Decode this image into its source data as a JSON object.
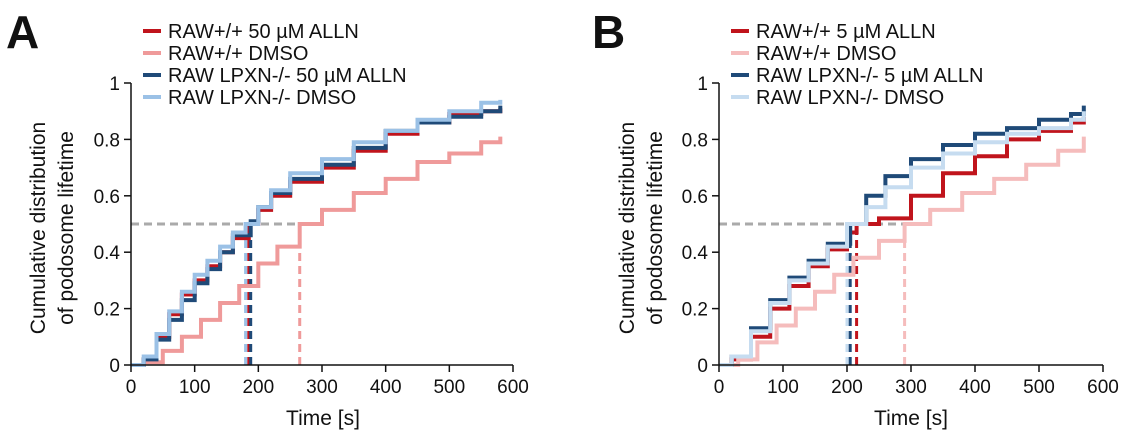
{
  "chart_data": [
    {
      "panel": "A",
      "type": "line",
      "title": "",
      "xlabel": "Time [s]",
      "ylabel": "Cumulative distribution of podosome lifetime",
      "ylabel_lines": [
        "Cumulative distribution",
        "of podosome lifetime"
      ],
      "xlim": [
        0,
        600
      ],
      "ylim": [
        0,
        1
      ],
      "xticks": [
        0,
        100,
        200,
        300,
        400,
        500,
        600
      ],
      "yticks": [
        0,
        0.2,
        0.4,
        0.6,
        0.8,
        1
      ],
      "ytick_labels": [
        "0",
        "0.2",
        "0.4",
        "0.6",
        "0.8",
        "1"
      ],
      "grid": false,
      "legend": "top-left",
      "threshold": {
        "y": 0.5,
        "color": "#aaaaaa"
      },
      "series": [
        {
          "name": "RAW+/+ 50 µM ALLN",
          "color": "#c0141c",
          "median": 185,
          "x": [
            0,
            20,
            40,
            60,
            80,
            100,
            120,
            140,
            160,
            185,
            200,
            220,
            250,
            300,
            350,
            400,
            450,
            500,
            550,
            580
          ],
          "y": [
            0,
            0.02,
            0.1,
            0.18,
            0.25,
            0.3,
            0.35,
            0.4,
            0.45,
            0.5,
            0.55,
            0.6,
            0.65,
            0.7,
            0.76,
            0.82,
            0.86,
            0.89,
            0.9,
            0.91
          ]
        },
        {
          "name": "RAW+/+ DMSO",
          "color": "#ef9a9a",
          "median": 265,
          "x": [
            0,
            20,
            50,
            80,
            110,
            140,
            170,
            200,
            230,
            265,
            300,
            350,
            400,
            450,
            500,
            550,
            580
          ],
          "y": [
            0,
            0.01,
            0.05,
            0.1,
            0.16,
            0.22,
            0.28,
            0.36,
            0.42,
            0.5,
            0.55,
            0.61,
            0.66,
            0.72,
            0.75,
            0.79,
            0.81
          ]
        },
        {
          "name": "RAW LPXN-/- 50 µM ALLN",
          "color": "#1f4a78",
          "median": 188,
          "x": [
            0,
            20,
            40,
            60,
            80,
            100,
            120,
            140,
            160,
            188,
            200,
            220,
            250,
            300,
            350,
            400,
            450,
            500,
            550,
            580
          ],
          "y": [
            0,
            0.02,
            0.09,
            0.16,
            0.23,
            0.29,
            0.34,
            0.4,
            0.46,
            0.51,
            0.56,
            0.61,
            0.66,
            0.71,
            0.77,
            0.83,
            0.86,
            0.88,
            0.9,
            0.92
          ]
        },
        {
          "name": "RAW LPXN-/- DMSO",
          "color": "#9bc1e6",
          "median": 180,
          "x": [
            0,
            20,
            40,
            60,
            80,
            100,
            120,
            140,
            160,
            180,
            200,
            220,
            250,
            300,
            350,
            400,
            450,
            500,
            550,
            580
          ],
          "y": [
            0,
            0.03,
            0.11,
            0.19,
            0.26,
            0.32,
            0.37,
            0.42,
            0.47,
            0.5,
            0.56,
            0.62,
            0.68,
            0.73,
            0.79,
            0.83,
            0.87,
            0.9,
            0.93,
            0.94
          ]
        }
      ]
    },
    {
      "panel": "B",
      "type": "line",
      "title": "",
      "xlabel": "Time [s]",
      "ylabel": "Cumulative distribution of podosome lifetime",
      "ylabel_lines": [
        "Cumulative distribution",
        "of podosome lifetime"
      ],
      "xlim": [
        0,
        600
      ],
      "ylim": [
        0,
        1
      ],
      "xticks": [
        0,
        100,
        200,
        300,
        400,
        500,
        600
      ],
      "yticks": [
        0,
        0.2,
        0.4,
        0.6,
        0.8,
        1
      ],
      "ytick_labels": [
        "0",
        "0.2",
        "0.4",
        "0.6",
        "0.8",
        "1"
      ],
      "grid": false,
      "legend": "top-left",
      "threshold": {
        "y": 0.5,
        "color": "#aaaaaa"
      },
      "series": [
        {
          "name": "RAW+/+ 5 µM ALLN",
          "color": "#c0141c",
          "median": 215,
          "x": [
            0,
            20,
            50,
            80,
            110,
            140,
            170,
            200,
            215,
            250,
            300,
            350,
            400,
            450,
            500,
            550,
            570
          ],
          "y": [
            0,
            0.02,
            0.1,
            0.2,
            0.28,
            0.35,
            0.41,
            0.47,
            0.5,
            0.52,
            0.6,
            0.68,
            0.74,
            0.8,
            0.83,
            0.86,
            0.88
          ]
        },
        {
          "name": "RAW+/+ DMSO",
          "color": "#f5bcbc",
          "median": 290,
          "x": [
            0,
            30,
            60,
            90,
            120,
            150,
            180,
            210,
            250,
            290,
            330,
            380,
            430,
            480,
            530,
            570
          ],
          "y": [
            0,
            0.02,
            0.08,
            0.14,
            0.2,
            0.26,
            0.32,
            0.38,
            0.44,
            0.5,
            0.55,
            0.61,
            0.66,
            0.71,
            0.76,
            0.81
          ]
        },
        {
          "name": "RAW LPXN-/- 5 µM ALLN",
          "color": "#1f4a78",
          "median": 205,
          "x": [
            0,
            20,
            50,
            80,
            110,
            140,
            170,
            205,
            230,
            260,
            300,
            350,
            400,
            450,
            500,
            550,
            570
          ],
          "y": [
            0,
            0.03,
            0.13,
            0.23,
            0.31,
            0.37,
            0.43,
            0.5,
            0.6,
            0.67,
            0.73,
            0.78,
            0.82,
            0.84,
            0.87,
            0.89,
            0.92
          ]
        },
        {
          "name": "RAW LPXN-/- DMSO",
          "color": "#c6dcf0",
          "median": 200,
          "x": [
            0,
            20,
            50,
            80,
            110,
            140,
            170,
            200,
            230,
            260,
            300,
            350,
            400,
            450,
            500,
            550,
            570
          ],
          "y": [
            0,
            0.03,
            0.12,
            0.22,
            0.3,
            0.36,
            0.42,
            0.5,
            0.56,
            0.63,
            0.7,
            0.75,
            0.79,
            0.82,
            0.84,
            0.87,
            0.9
          ]
        }
      ]
    }
  ]
}
